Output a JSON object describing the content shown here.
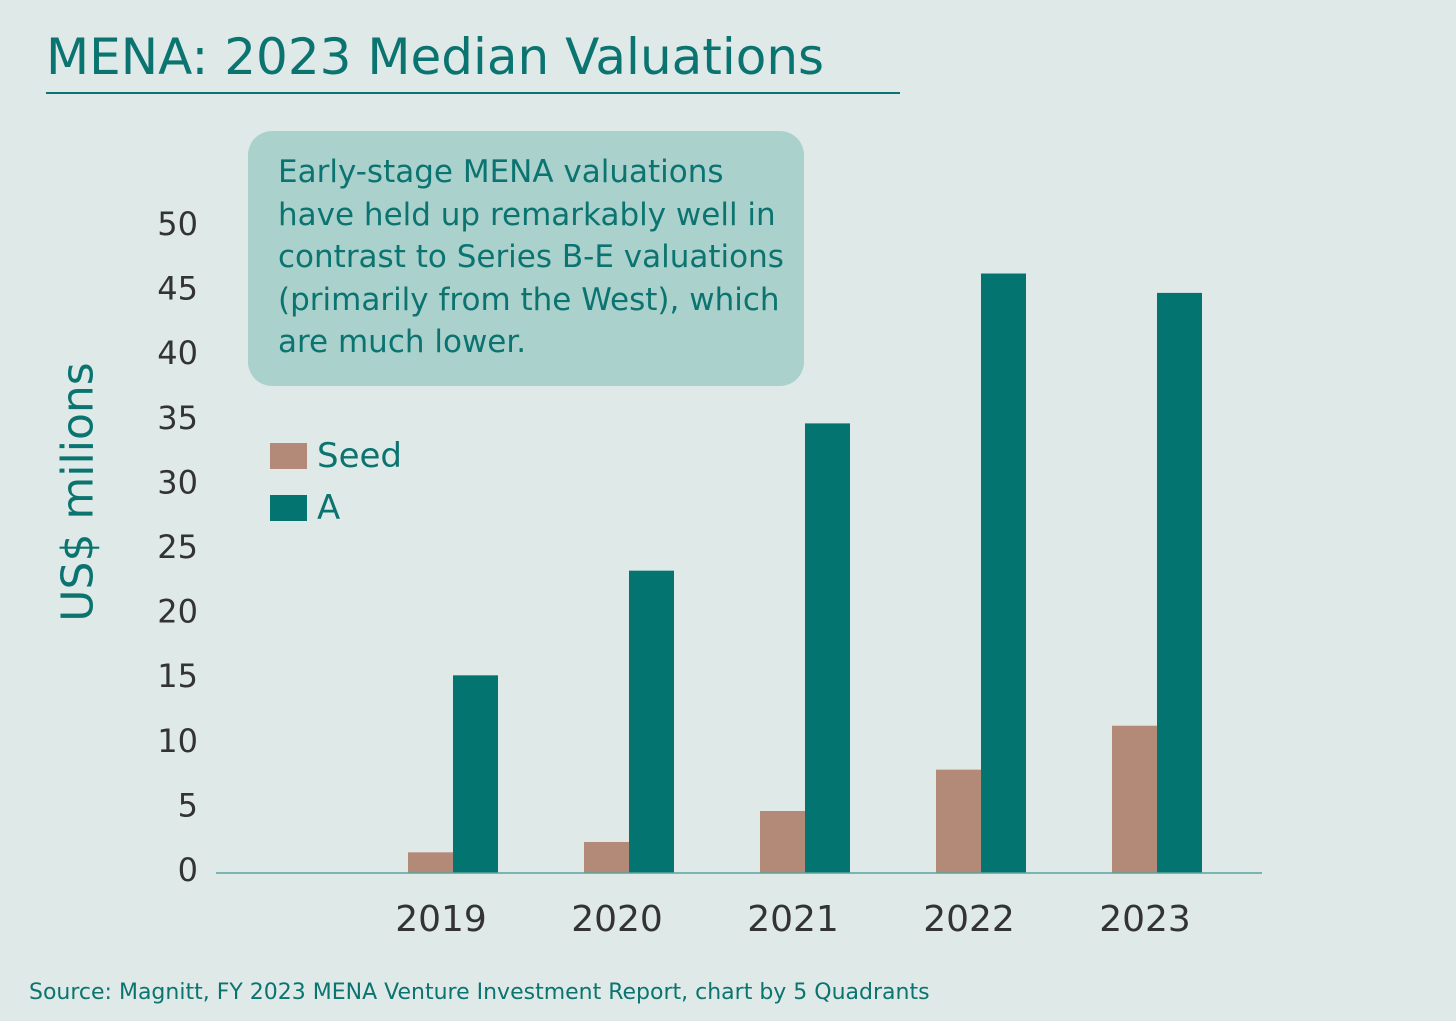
{
  "title": "MENA: 2023 Median Valuations",
  "callout": {
    "lines": [
      "Early-stage MENA valuations",
      "have held up remarkably well in",
      "contrast to Series B-E valuations",
      "(primarily from the West), which",
      "are much lower."
    ]
  },
  "source": "Source: Magnitt, FY 2023 MENA Venture Investment Report, chart by 5 Quadrants",
  "colors": {
    "background": "#dfeae8",
    "accent": "#0b7470",
    "seed": "#b38a78",
    "a": "#03746f",
    "tick_text": "#333333"
  },
  "chart_data": {
    "type": "bar",
    "title": "MENA: 2023 Median Valuations",
    "xlabel": "",
    "ylabel": "US$ milions",
    "categories": [
      "2019",
      "2020",
      "2021",
      "2022",
      "2023"
    ],
    "series": [
      {
        "name": "Seed",
        "values": [
          1.6,
          2.4,
          4.8,
          8.0,
          11.4
        ]
      },
      {
        "name": "A",
        "values": [
          15.3,
          23.4,
          34.8,
          46.4,
          44.9
        ]
      }
    ],
    "ylim": [
      0,
      50
    ],
    "yticks": [
      0,
      5,
      10,
      15,
      20,
      25,
      30,
      35,
      40,
      45,
      50
    ],
    "grid": false,
    "legend": "left"
  }
}
